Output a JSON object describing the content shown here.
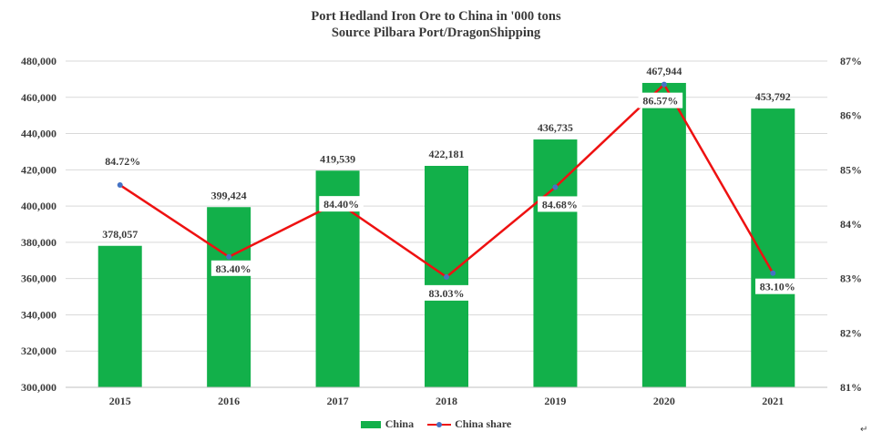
{
  "chart_data": {
    "type": "bar",
    "title": "Port Hedland Iron Ore to China in '000 tons",
    "subtitle": "Source Pilbara Port/DragonShipping",
    "categories": [
      "2015",
      "2016",
      "2017",
      "2018",
      "2019",
      "2020",
      "2021"
    ],
    "series": [
      {
        "name": "China",
        "type": "bar",
        "axis": "left",
        "color": "#12b04a",
        "values": [
          378057,
          399424,
          419539,
          422181,
          436735,
          467944,
          453792
        ],
        "labels": [
          "378,057",
          "399,424",
          "419,539",
          "422,181",
          "436,735",
          "467,944",
          "453,792"
        ]
      },
      {
        "name": "China share",
        "type": "line",
        "axis": "right",
        "color": "#ee1111",
        "marker_color": "#4472c4",
        "values": [
          84.72,
          83.4,
          84.4,
          83.03,
          84.68,
          86.57,
          83.1
        ],
        "labels": [
          "84.72%",
          "83.40%",
          "84.40%",
          "83.03%",
          "84.68%",
          "86.57%",
          "83.10%"
        ]
      }
    ],
    "y_left": {
      "ylim": [
        300000,
        480000
      ],
      "ticks": [
        "300,000",
        "320,000",
        "340,000",
        "360,000",
        "380,000",
        "400,000",
        "420,000",
        "440,000",
        "460,000",
        "480,000"
      ]
    },
    "y_right": {
      "ylim": [
        81,
        87
      ],
      "ticks": [
        "81%",
        "82%",
        "83%",
        "84%",
        "85%",
        "86%",
        "87%"
      ]
    },
    "grid": true,
    "legend_position": "bottom"
  },
  "legend": {
    "bar_label": "China",
    "line_label": "China share"
  },
  "cursor_glyph": "↵"
}
